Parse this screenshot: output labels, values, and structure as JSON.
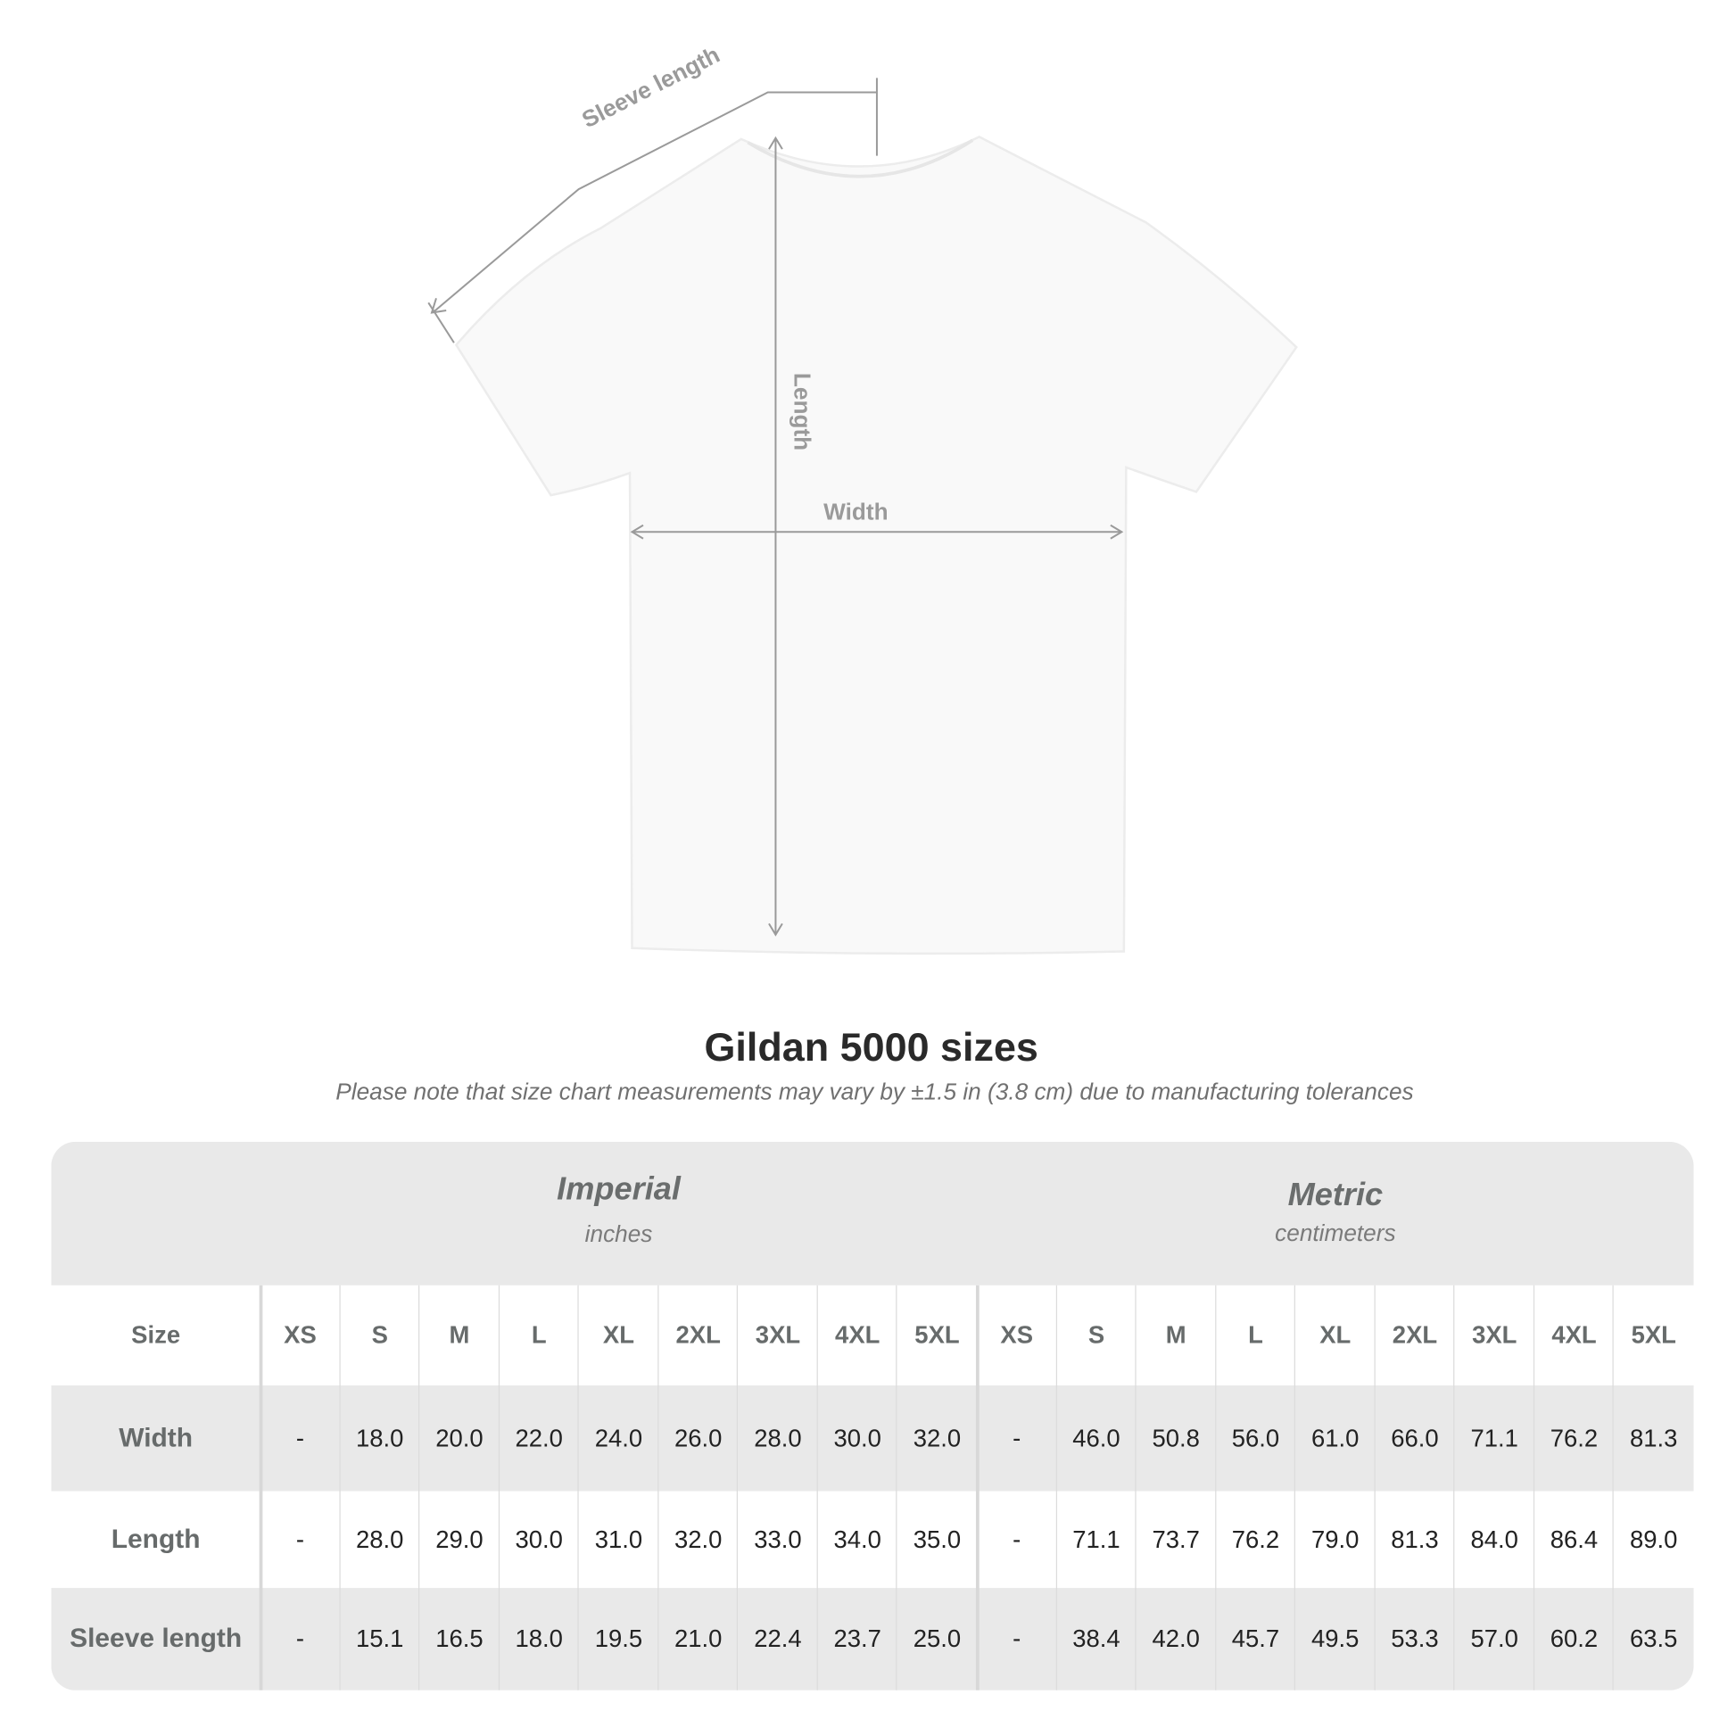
{
  "diagram": {
    "labels": {
      "sleeve": "Sleeve length",
      "length": "Length",
      "width": "Width"
    }
  },
  "title": "Gildan 5000 sizes",
  "subtitle": "Please note that size chart measurements may vary by ±1.5 in (3.8 cm) due to manufacturing tolerances",
  "table": {
    "imperial": {
      "name": "Imperial",
      "unit": "inches"
    },
    "metric": {
      "name": "Metric",
      "unit": "centimeters"
    },
    "size_label": "Size",
    "sizes": [
      "XS",
      "S",
      "M",
      "L",
      "XL",
      "2XL",
      "3XL",
      "4XL",
      "5XL"
    ],
    "rows": [
      {
        "label": "Width",
        "imperial": [
          "-",
          "18.0",
          "20.0",
          "22.0",
          "24.0",
          "26.0",
          "28.0",
          "30.0",
          "32.0"
        ],
        "metric": [
          "-",
          "46.0",
          "50.8",
          "56.0",
          "61.0",
          "66.0",
          "71.1",
          "76.2",
          "81.3"
        ]
      },
      {
        "label": "Length",
        "imperial": [
          "-",
          "28.0",
          "29.0",
          "30.0",
          "31.0",
          "32.0",
          "33.0",
          "34.0",
          "35.0"
        ],
        "metric": [
          "-",
          "71.1",
          "73.7",
          "76.2",
          "79.0",
          "81.3",
          "84.0",
          "86.4",
          "89.0"
        ]
      },
      {
        "label": "Sleeve length",
        "imperial": [
          "-",
          "15.1",
          "16.5",
          "18.0",
          "19.5",
          "21.0",
          "22.4",
          "23.7",
          "25.0"
        ],
        "metric": [
          "-",
          "38.4",
          "42.0",
          "45.7",
          "49.5",
          "53.3",
          "57.0",
          "60.2",
          "63.5"
        ]
      }
    ],
    "colors": {
      "band": "#e9e9e9",
      "header_text": "#676b6b",
      "value_text": "#222222"
    }
  }
}
